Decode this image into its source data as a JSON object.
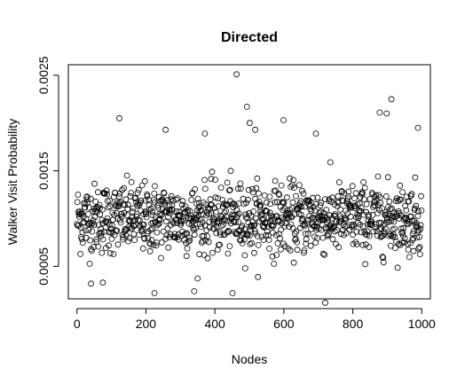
{
  "chart_data": {
    "type": "scatter",
    "title": "Directed",
    "xlabel": "Nodes",
    "ylabel": "Walker Visit Probability",
    "xlim": [
      -25,
      1025
    ],
    "ylim": [
      0.00016,
      0.00261
    ],
    "xticks": [
      "0",
      "200",
      "400",
      "600",
      "800",
      "1000"
    ],
    "xtick_values": [
      0,
      200,
      400,
      600,
      800,
      1000
    ],
    "yticks": [
      "0.0005",
      "0.0015",
      "0.0025"
    ],
    "ytick_values": [
      0.0005,
      0.0015,
      0.0025
    ],
    "grid": false,
    "marker": "open-circle",
    "n_points": 1000,
    "y_center": 0.001,
    "y_spread": 0.00018,
    "highlights": [
      {
        "x": 463,
        "y": 0.00251
      },
      {
        "x": 493,
        "y": 0.00217
      },
      {
        "x": 912,
        "y": 0.00225
      },
      {
        "x": 123,
        "y": 0.00205
      },
      {
        "x": 599,
        "y": 0.00203
      },
      {
        "x": 501,
        "y": 0.002
      },
      {
        "x": 517,
        "y": 0.00193
      },
      {
        "x": 989,
        "y": 0.00195
      },
      {
        "x": 257,
        "y": 0.00193
      },
      {
        "x": 878,
        "y": 0.00211
      },
      {
        "x": 898,
        "y": 0.0021
      },
      {
        "x": 371,
        "y": 0.00189
      },
      {
        "x": 693,
        "y": 0.00189
      },
      {
        "x": 720,
        "y": 0.00012
      },
      {
        "x": 225,
        "y": 0.00022
      },
      {
        "x": 451,
        "y": 0.00022
      },
      {
        "x": 340,
        "y": 0.00024
      },
      {
        "x": 41,
        "y": 0.00032
      },
      {
        "x": 75,
        "y": 0.00033
      }
    ]
  }
}
